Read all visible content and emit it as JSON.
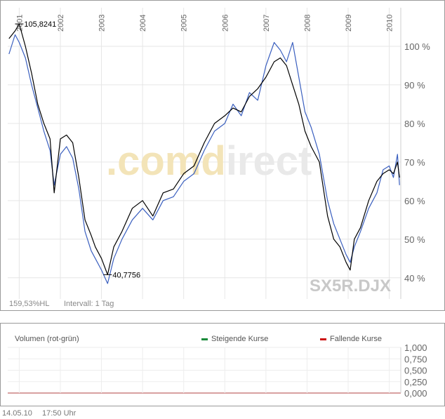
{
  "chart_data": [
    {
      "type": "line",
      "symbol": "SX5R.DJX",
      "watermark": ".comdirect",
      "x_tick_labels": [
        "2001",
        "2002",
        "2003",
        "2004",
        "2005",
        "2006",
        "2007",
        "2008",
        "2009",
        "2010"
      ],
      "y_tick_labels": [
        "100 %",
        "90 %",
        "80 %",
        "70 %",
        "60 %",
        "50 %",
        "40 %"
      ],
      "y_ticks": [
        100,
        90,
        80,
        70,
        60,
        50,
        40
      ],
      "ylim": [
        34.5,
        110
      ],
      "xlim": [
        2000.72,
        2010.28
      ],
      "grid": true,
      "series": [
        {
          "color": "#000000",
          "x": [
            2000.75,
            2000.9,
            2001.0,
            2001.15,
            2001.3,
            2001.45,
            2001.6,
            2001.75,
            2001.85,
            2002.0,
            2002.15,
            2002.3,
            2002.45,
            2002.6,
            2002.75,
            2002.85,
            2003.0,
            2003.15,
            2003.3,
            2003.5,
            2003.75,
            2004.0,
            2004.25,
            2004.5,
            2004.75,
            2005.0,
            2005.25,
            2005.5,
            2005.75,
            2006.0,
            2006.2,
            2006.4,
            2006.6,
            2006.8,
            2007.0,
            2007.2,
            2007.35,
            2007.5,
            2007.65,
            2007.8,
            2007.95,
            2008.1,
            2008.3,
            2008.5,
            2008.65,
            2008.8,
            2008.95,
            2009.05,
            2009.15,
            2009.3,
            2009.5,
            2009.7,
            2009.85,
            2010.0,
            2010.1,
            2010.2,
            2010.25
          ],
          "values": [
            102,
            104,
            105.8,
            100,
            93,
            85,
            80,
            76,
            62,
            76,
            77,
            75,
            66,
            55,
            51,
            48,
            45,
            40.8,
            48,
            52,
            58,
            60,
            56,
            62,
            63,
            67,
            69,
            75,
            80,
            82,
            84,
            83,
            87,
            89,
            92,
            96,
            97,
            95,
            90,
            85,
            78,
            74,
            70,
            56,
            50,
            48,
            44,
            42,
            50,
            53,
            60,
            65,
            67,
            68,
            67,
            70,
            66
          ]
        },
        {
          "color": "#3a5fbf",
          "x": [
            2000.75,
            2000.9,
            2001.0,
            2001.15,
            2001.3,
            2001.45,
            2001.6,
            2001.75,
            2001.85,
            2002.0,
            2002.15,
            2002.3,
            2002.45,
            2002.6,
            2002.75,
            2002.85,
            2003.0,
            2003.15,
            2003.3,
            2003.5,
            2003.75,
            2004.0,
            2004.25,
            2004.5,
            2004.75,
            2005.0,
            2005.25,
            2005.5,
            2005.75,
            2006.0,
            2006.2,
            2006.4,
            2006.6,
            2006.8,
            2007.0,
            2007.2,
            2007.35,
            2007.5,
            2007.65,
            2007.8,
            2007.95,
            2008.1,
            2008.3,
            2008.5,
            2008.65,
            2008.8,
            2008.95,
            2009.05,
            2009.15,
            2009.3,
            2009.5,
            2009.7,
            2009.85,
            2010.0,
            2010.1,
            2010.2,
            2010.25
          ],
          "values": [
            98,
            103,
            101,
            97,
            90,
            84,
            78,
            73,
            64,
            72,
            74,
            71,
            63,
            52,
            47,
            45,
            42,
            38.5,
            45,
            50,
            55,
            58,
            55,
            60,
            61,
            65,
            67,
            73,
            78,
            80,
            85,
            82,
            88,
            86,
            95,
            101,
            99,
            96,
            101,
            92,
            83,
            79,
            72,
            60,
            54,
            50,
            46,
            44,
            48,
            52,
            58,
            62,
            68,
            69,
            66,
            72,
            64
          ]
        }
      ],
      "annotations": [
        {
          "label": "105,8241",
          "x": 2001.0,
          "y": 105.8
        },
        {
          "label": "40,7756",
          "x": 2003.15,
          "y": 40.8
        }
      ],
      "bottom_left_label": "159,53%HL",
      "interval_label": "Intervall: 1 Tag"
    },
    {
      "type": "bar",
      "title": "Volumen (rot-grün)",
      "y_tick_labels": [
        "1,000",
        "0,750",
        "0,500",
        "0,250",
        "0,000"
      ],
      "y_ticks": [
        1.0,
        0.75,
        0.5,
        0.25,
        0.0
      ],
      "ylim": [
        0,
        1.0
      ],
      "values": [],
      "legend": [
        {
          "label": "Steigende Kurse",
          "color": "#1a8a3a"
        },
        {
          "label": "Fallende Kurse",
          "color": "#cc1111"
        }
      ]
    }
  ],
  "footer": {
    "date": "14.05.10",
    "time": "17:50 Uhr"
  }
}
